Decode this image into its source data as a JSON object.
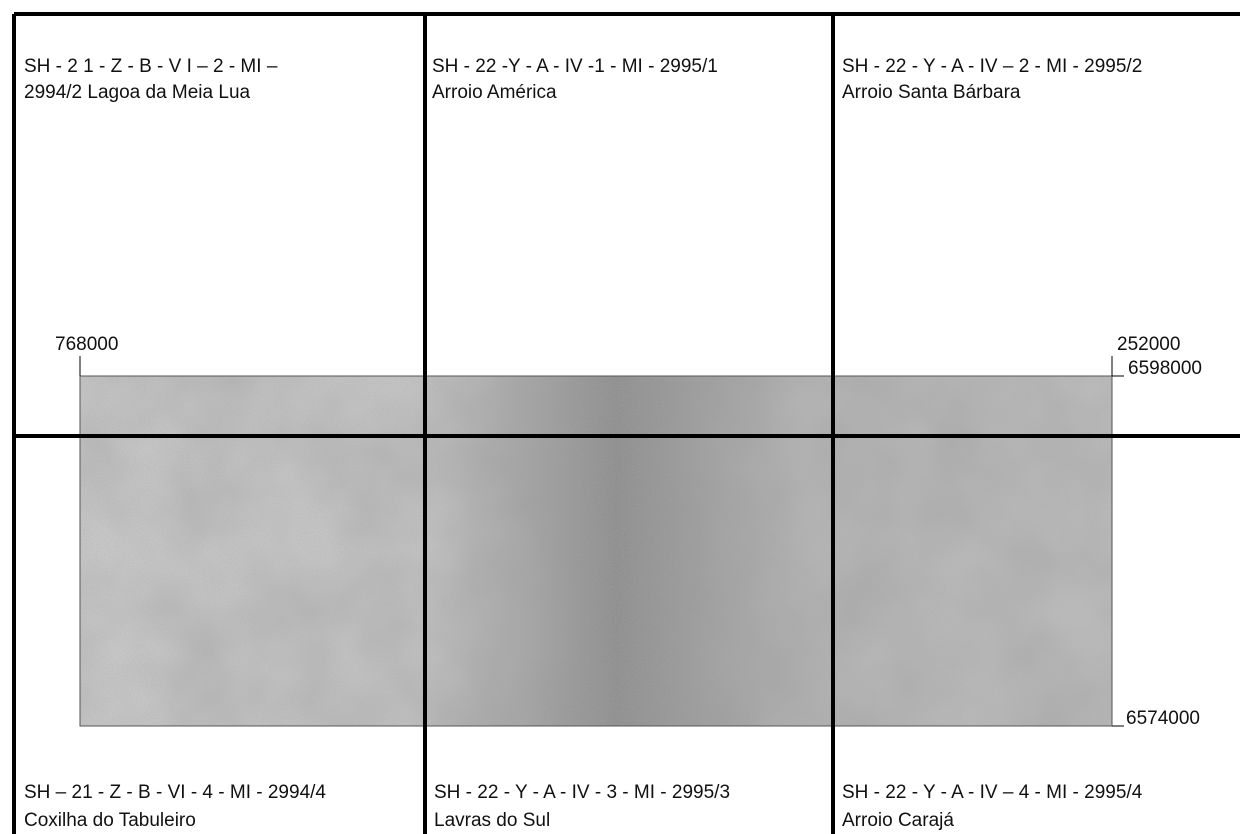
{
  "sheets": [
    {
      "line1": "SH - 2 1 - Z - B - V I – 2 - MI –",
      "line2": "2994/2 Lagoa da Meia Lua"
    },
    {
      "line1": "SH - 22 -Y - A - IV -1 - MI  - 2995/1",
      "line2": "Arroio América"
    },
    {
      "line1": "SH - 22 - Y - A - IV – 2 - MI - 2995/2",
      "line2": "Arroio Santa Bárbara"
    },
    {
      "line1": "SH – 21 - Z - B - VI - 4 - MI - 2994/4",
      "line2": "Coxilha do Tabuleiro"
    },
    {
      "line1": "SH - 22 - Y - A - IV - 3 - MI - 2995/3",
      "line2": "Lavras do Sul"
    },
    {
      "line1": "SH - 22 - Y - A - IV – 4 - MI - 2995/4",
      "line2": "Arroio Carajá"
    }
  ],
  "coordinates": {
    "west": "768000",
    "east": "252000",
    "north": "6598000",
    "south": "6574000"
  }
}
